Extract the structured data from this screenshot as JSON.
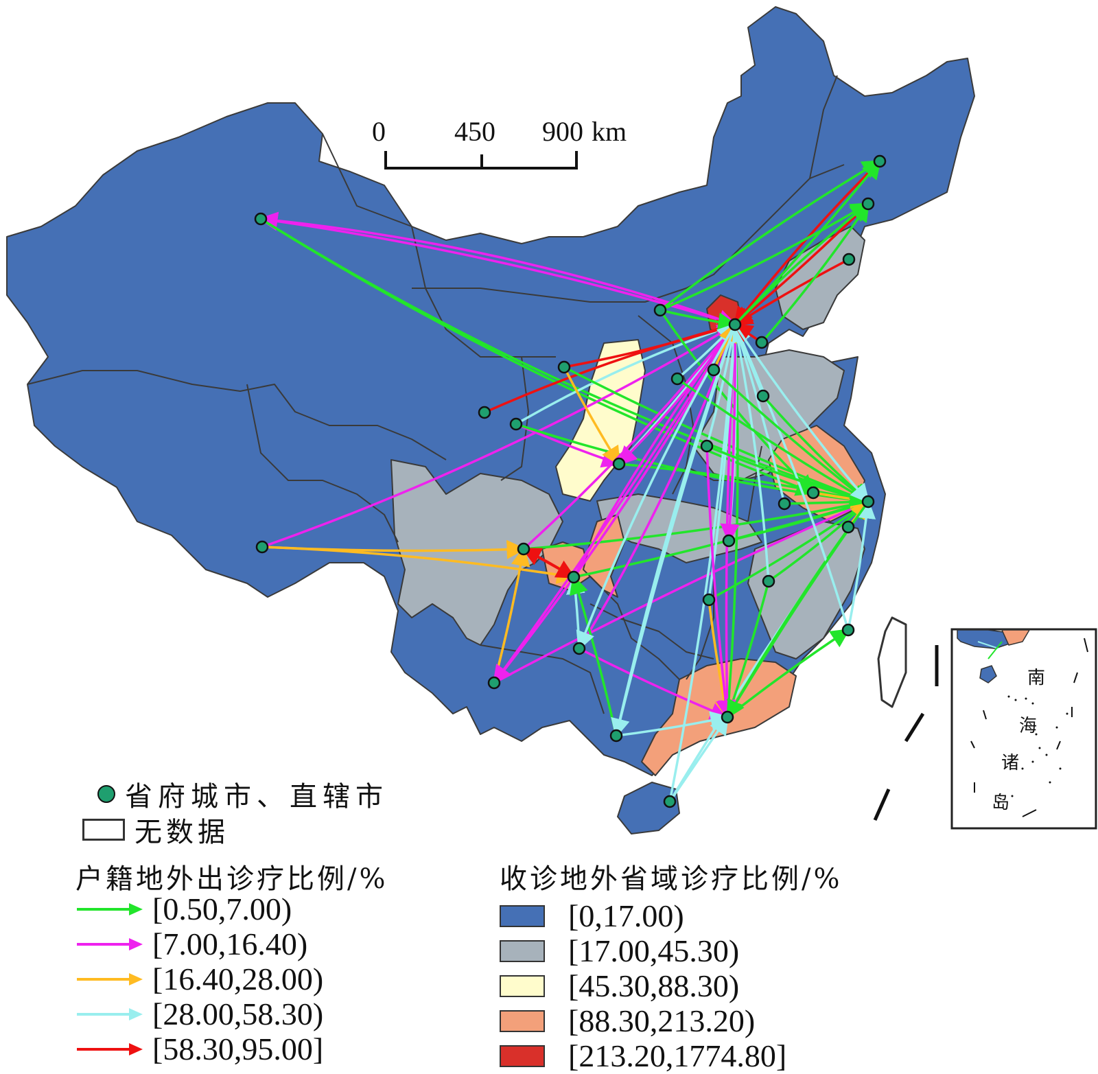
{
  "scale_bar": {
    "ticks": [
      "0",
      "450",
      "900"
    ],
    "unit": "km"
  },
  "legend": {
    "city_label": "省府城市、直辖市",
    "nodata_label": "无数据",
    "flow_title": "户籍地外出诊疗比例/%",
    "flow_classes": [
      {
        "label": "[0.50,7.00)",
        "color": "#22e52b"
      },
      {
        "label": "[7.00,16.40)",
        "color": "#ee22ee"
      },
      {
        "label": "[16.40,28.00)",
        "color": "#ffbb22"
      },
      {
        "label": "[28.00,58.30)",
        "color": "#99eeee"
      },
      {
        "label": "[58.30,95.00]",
        "color": "#ee1111"
      }
    ],
    "fill_title": "收诊地外省域诊疗比例/%",
    "fill_classes": [
      {
        "label": "[0,17.00)",
        "color": "#4570b5"
      },
      {
        "label": "[17.00,45.30)",
        "color": "#a7b2bb"
      },
      {
        "label": "[45.30,88.30)",
        "color": "#fffccc"
      },
      {
        "label": "[88.30,213.20)",
        "color": "#f3a07a"
      },
      {
        "label": "[213.20,1774.80]",
        "color": "#d9302a"
      }
    ]
  },
  "inset": {
    "label_chars": [
      "南",
      "海",
      "诸",
      "岛"
    ]
  },
  "colors": {
    "city_dot": "#1f9f6f",
    "border": "#3a3a3a"
  }
}
